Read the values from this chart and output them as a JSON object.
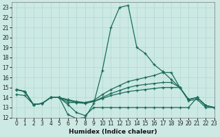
{
  "xlabel": "Humidex (Indice chaleur)",
  "xlim": [
    -0.5,
    23
  ],
  "ylim": [
    12,
    23.5
  ],
  "yticks": [
    12,
    13,
    14,
    15,
    16,
    17,
    18,
    19,
    20,
    21,
    22,
    23
  ],
  "xticks": [
    0,
    1,
    2,
    3,
    4,
    5,
    6,
    7,
    8,
    9,
    10,
    11,
    12,
    13,
    14,
    15,
    16,
    17,
    18,
    19,
    20,
    21,
    22,
    23
  ],
  "bg_color": "#cce9e4",
  "grid_color": "#b0d8d0",
  "line_color": "#1a6b5a",
  "series": [
    {
      "x": [
        0,
        1,
        2,
        3,
        4,
        5,
        6,
        7,
        8,
        9,
        10,
        11,
        12,
        13,
        14,
        15,
        16,
        17,
        18,
        19,
        20,
        21,
        22,
        23
      ],
      "y": [
        14.8,
        14.6,
        13.3,
        13.4,
        14.0,
        14.0,
        12.3,
        11.9,
        12.0,
        13.4,
        16.7,
        21.0,
        23.0,
        23.2,
        19.0,
        18.4,
        17.3,
        16.6,
        15.8,
        15.0,
        13.7,
        13.8,
        13.0,
        13.0
      ]
    },
    {
      "x": [
        0,
        1,
        2,
        3,
        4,
        5,
        6,
        7,
        8,
        9,
        10,
        11,
        12,
        13,
        14,
        15,
        16,
        17,
        18,
        19,
        20,
        21,
        22,
        23
      ],
      "y": [
        14.8,
        14.6,
        13.3,
        13.4,
        14.0,
        14.0,
        13.5,
        13.5,
        13.5,
        13.7,
        14.3,
        14.8,
        15.2,
        15.6,
        15.8,
        16.0,
        16.2,
        16.5,
        16.5,
        15.0,
        13.8,
        14.0,
        13.2,
        13.0
      ]
    },
    {
      "x": [
        0,
        1,
        2,
        3,
        4,
        5,
        6,
        7,
        8,
        9,
        10,
        11,
        12,
        13,
        14,
        15,
        16,
        17,
        18,
        19,
        20,
        21,
        22,
        23
      ],
      "y": [
        14.8,
        14.6,
        13.3,
        13.4,
        14.0,
        14.0,
        13.7,
        13.5,
        13.4,
        13.6,
        14.0,
        14.4,
        14.7,
        15.0,
        15.2,
        15.3,
        15.4,
        15.5,
        15.5,
        15.0,
        13.8,
        14.0,
        13.2,
        13.0
      ]
    },
    {
      "x": [
        0,
        1,
        2,
        3,
        4,
        5,
        6,
        7,
        8,
        9,
        10,
        11,
        12,
        13,
        14,
        15,
        16,
        17,
        18,
        19,
        20,
        21,
        22,
        23
      ],
      "y": [
        14.8,
        14.6,
        13.3,
        13.4,
        14.0,
        14.0,
        13.8,
        13.6,
        13.5,
        13.6,
        13.9,
        14.2,
        14.4,
        14.6,
        14.7,
        14.8,
        14.9,
        15.0,
        15.0,
        15.0,
        13.8,
        14.0,
        13.2,
        13.0
      ]
    },
    {
      "x": [
        0,
        1,
        2,
        3,
        4,
        5,
        6,
        7,
        8,
        9,
        10,
        11,
        12,
        13,
        14,
        15,
        16,
        17,
        18,
        19,
        20,
        21,
        22,
        23
      ],
      "y": [
        14.3,
        14.2,
        13.3,
        13.4,
        14.0,
        14.0,
        13.3,
        12.5,
        12.2,
        13.0,
        13.0,
        13.0,
        13.0,
        13.0,
        13.0,
        13.0,
        13.0,
        13.0,
        13.0,
        13.0,
        13.0,
        14.0,
        13.2,
        13.0
      ]
    }
  ]
}
